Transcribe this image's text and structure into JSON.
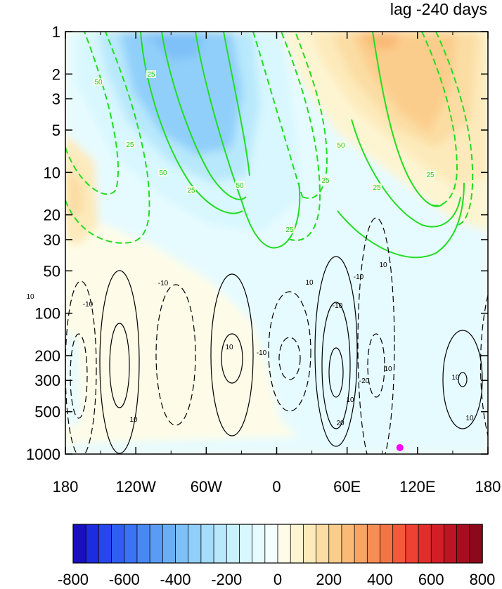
{
  "chart_data": {
    "type": "contour",
    "title": "lag -240 days",
    "xlabel": "",
    "ylabel": "",
    "x_ticks": [
      "180",
      "120W",
      "60W",
      "0",
      "60E",
      "120E",
      "180"
    ],
    "x_values_deg": [
      -180,
      -120,
      -60,
      0,
      60,
      120,
      180
    ],
    "xlim": [
      -180,
      180
    ],
    "y_ticks": [
      "1",
      "2",
      "3",
      "5",
      "10",
      "20",
      "30",
      "50",
      "100",
      "200",
      "300",
      "500",
      "1000"
    ],
    "y_values": [
      1,
      2,
      3,
      5,
      10,
      20,
      30,
      50,
      100,
      200,
      300,
      500,
      1000
    ],
    "ylim": [
      1000,
      1
    ],
    "y_scale": "log",
    "colorbar": {
      "orientation": "horizontal",
      "tick_labels": [
        "-800",
        "-600",
        "-400",
        "-200",
        "0",
        "200",
        "400",
        "600",
        "800"
      ],
      "levels": [
        -800,
        -750,
        -700,
        -650,
        -600,
        -550,
        -500,
        -450,
        -400,
        -350,
        -300,
        -250,
        -200,
        -150,
        -100,
        -50,
        0,
        50,
        100,
        150,
        200,
        250,
        300,
        350,
        400,
        450,
        500,
        550,
        600,
        650,
        700,
        750,
        800
      ],
      "colors": [
        "#1a0fbf",
        "#1e2ce0",
        "#2646f0",
        "#2e5ef2",
        "#3a73f3",
        "#4888f4",
        "#5a9cf5",
        "#6aaef6",
        "#7ec0f8",
        "#90cffa",
        "#a4dcfb",
        "#b8e8fc",
        "#c8f0fd",
        "#d8f7fe",
        "#e6fbff",
        "#f4feff",
        "#fefce8",
        "#fdf5d2",
        "#fdeabb",
        "#fbdda3",
        "#fbcd8c",
        "#faba77",
        "#f8a464",
        "#f68d54",
        "#f47445",
        "#f25a3a",
        "#ef4133",
        "#e42c2b",
        "#d21e26",
        "#bc1422",
        "#a40e1f",
        "#8c081b"
      ]
    },
    "shaded_anomalies": [
      {
        "sign": "negative",
        "center_lon": -95,
        "center_p": 5,
        "approx_value": -150
      },
      {
        "sign": "negative",
        "center_lon": -40,
        "center_p": 15,
        "approx_value": -50
      },
      {
        "sign": "positive",
        "center_lon": 95,
        "center_p": 3,
        "approx_value": 250
      },
      {
        "sign": "positive",
        "center_lon": -160,
        "center_p": 20,
        "approx_value": 50
      },
      {
        "sign": "negative",
        "center_lon": 100,
        "center_p": 300,
        "approx_value": -25
      }
    ],
    "green_contour_labels": [
      "50",
      "25",
      "25",
      "50",
      "25",
      "50",
      "25",
      "25",
      "50",
      "25",
      "25"
    ],
    "black_contour_labels": [
      "10",
      "-10",
      "-10",
      "10",
      "10",
      "-10",
      "10",
      "10",
      "-10",
      "10",
      "-20",
      "10",
      "-10",
      "10",
      "20",
      "10"
    ],
    "marker": {
      "lon": 105,
      "p": 900,
      "color": "#ff00ff"
    }
  }
}
